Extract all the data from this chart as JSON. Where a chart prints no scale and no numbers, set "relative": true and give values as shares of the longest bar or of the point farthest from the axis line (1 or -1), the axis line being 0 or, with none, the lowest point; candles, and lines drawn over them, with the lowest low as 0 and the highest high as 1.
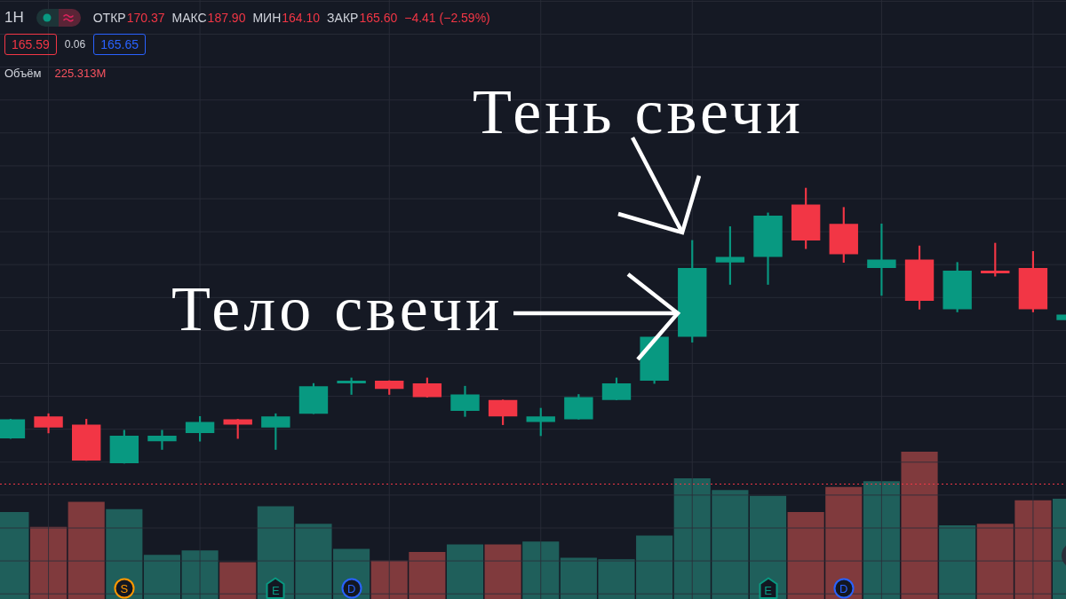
{
  "chart_data": [
    {
      "type": "candlestick",
      "title": "1H",
      "categories": [
        null,
        null,
        null,
        null,
        null,
        null,
        null,
        null,
        null,
        null,
        null,
        null,
        null,
        null,
        null,
        null,
        null,
        null,
        null,
        null,
        null,
        null,
        null,
        null,
        null,
        null,
        null,
        null,
        null
      ],
      "ohlc": [
        [
          0.09,
          0.16,
          0.09,
          0.16
        ],
        [
          0.17,
          0.18,
          0.11,
          0.13
        ],
        [
          0.14,
          0.16,
          0.01,
          0.01
        ],
        [
          0,
          0.12,
          0,
          0.1
        ],
        [
          0.08,
          0.12,
          0.05,
          0.1
        ],
        [
          0.11,
          0.17,
          0.08,
          0.15
        ],
        [
          0.16,
          0.16,
          0.09,
          0.14
        ],
        [
          0.13,
          0.18,
          0.05,
          0.17
        ],
        [
          0.18,
          0.29,
          0.18,
          0.28
        ],
        [
          0.29,
          0.31,
          0.25,
          0.3
        ],
        [
          0.3,
          0.3,
          0.25,
          0.27
        ],
        [
          0.29,
          0.31,
          0.24,
          0.24
        ],
        [
          0.19,
          0.28,
          0.17,
          0.25
        ],
        [
          0.23,
          0.23,
          0.14,
          0.17
        ],
        [
          0.15,
          0.2,
          0.1,
          0.17
        ],
        [
          0.16,
          0.25,
          0.16,
          0.24
        ],
        [
          0.23,
          0.31,
          0.23,
          0.29
        ],
        [
          0.3,
          0.46,
          0.29,
          0.46
        ],
        [
          0.46,
          0.81,
          0.44,
          0.71
        ],
        [
          0.73,
          0.86,
          0.65,
          0.75
        ],
        [
          0.75,
          0.91,
          0.65,
          0.9
        ],
        [
          0.94,
          1,
          0.78,
          0.81
        ],
        [
          0.87,
          0.93,
          0.73,
          0.76
        ],
        [
          0.71,
          0.87,
          0.61,
          0.74
        ],
        [
          0.74,
          0.79,
          0.56,
          0.59
        ],
        [
          0.56,
          0.73,
          0.55,
          0.7
        ],
        [
          0.7,
          0.8,
          0.68,
          0.69
        ],
        [
          0.71,
          0.77,
          0.55,
          0.56
        ],
        [
          0.52,
          0.54,
          0.52,
          0.54
        ]
      ],
      "colors": [
        "#089981",
        "#f23645",
        "#f23645",
        "#089981",
        "#089981",
        "#089981",
        "#f23645",
        "#089981",
        "#089981",
        "#089981",
        "#f23645",
        "#f23645",
        "#089981",
        "#f23645",
        "#089981",
        "#089981",
        "#089981",
        "#089981",
        "#089981",
        "#089981",
        "#089981",
        "#f23645",
        "#f23645",
        "#089981",
        "#f23645",
        "#089981",
        "#f23645",
        "#f23645",
        "#089981"
      ],
      "relative": true,
      "grid": true,
      "annotations": [
        "ОТКР",
        "170.37",
        "МАКС",
        "187.90",
        "МИН",
        "164.10",
        "ЗАКР",
        "165.60",
        "−4.41 (−2.59%)",
        "165.59",
        "0.06",
        "165.65",
        "Объём",
        "225.313M",
        "Тень свечи",
        "Тело свечи",
        "S",
        "E",
        "D",
        "E",
        "D"
      ]
    },
    {
      "type": "bar",
      "categories": [
        null,
        null,
        null,
        null,
        null,
        null,
        null,
        null,
        null,
        null,
        null,
        null,
        null,
        null,
        null,
        null,
        null,
        null,
        null,
        null,
        null,
        null,
        null,
        null,
        null,
        null,
        null,
        null,
        null
      ],
      "values": [
        0.59,
        0.49,
        0.66,
        0.61,
        0.3,
        0.33,
        0.25,
        0.63,
        0.51,
        0.34,
        0.26,
        0.32,
        0.37,
        0.37,
        0.39,
        0.28,
        0.27,
        0.43,
        0.82,
        0.74,
        0.7,
        0.59,
        0.76,
        0.8,
        1,
        0.5,
        0.51,
        0.67,
        0.68
      ],
      "colors": [
        "#1f5f5b",
        "#803a3d",
        "#803a3d",
        "#1f5f5b",
        "#1f5f5b",
        "#1f5f5b",
        "#803a3d",
        "#1f5f5b",
        "#1f5f5b",
        "#1f5f5b",
        "#803a3d",
        "#803a3d",
        "#1f5f5b",
        "#803a3d",
        "#1f5f5b",
        "#1f5f5b",
        "#1f5f5b",
        "#1f5f5b",
        "#1f5f5b",
        "#1f5f5b",
        "#1f5f5b",
        "#803a3d",
        "#803a3d",
        "#1f5f5b",
        "#803a3d",
        "#1f5f5b",
        "#803a3d",
        "#803a3d",
        "#1f5f5b"
      ],
      "relative": true,
      "ref_lines": [
        {
          "axis": "y",
          "value": 0.78,
          "color": "#f23645",
          "line_style": "dotted"
        }
      ]
    }
  ]
}
